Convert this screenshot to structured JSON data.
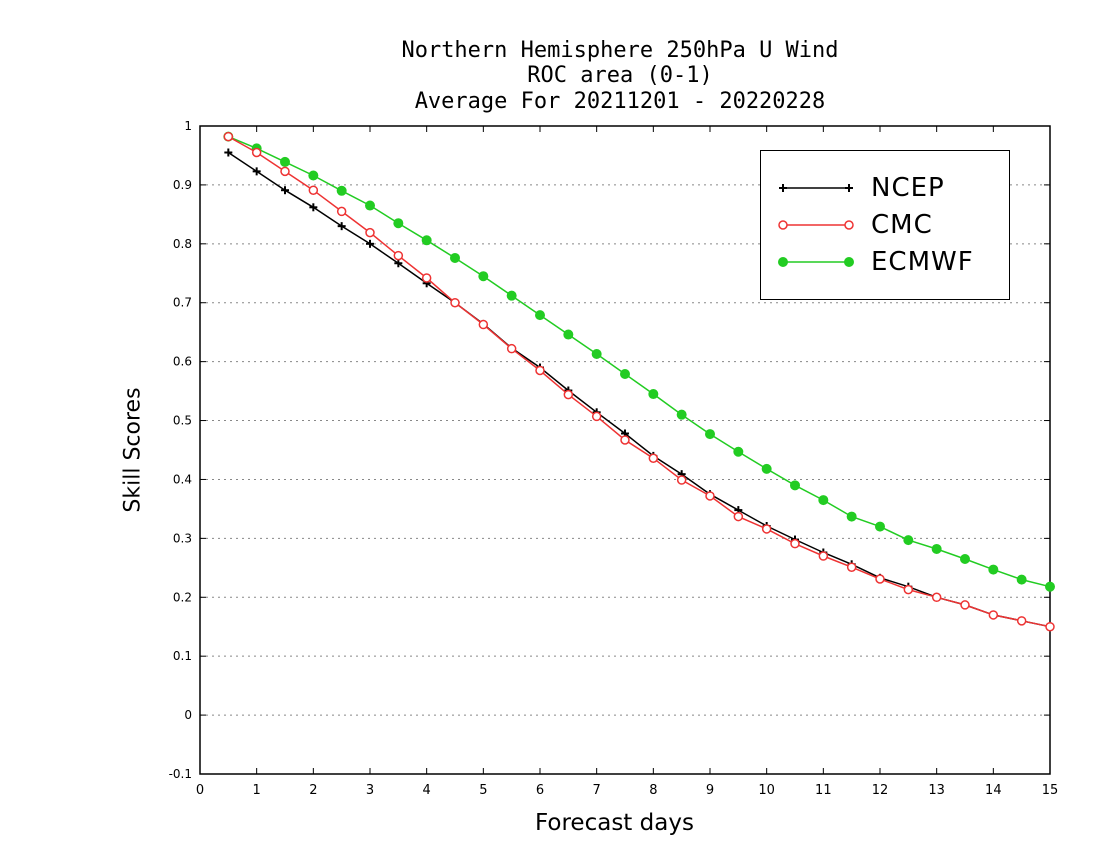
{
  "chart_data": {
    "type": "line",
    "title": [
      "Northern Hemisphere 250hPa U Wind",
      "ROC area (0-1)",
      "Average For 20211201 - 20220228"
    ],
    "xlabel": "Forecast days",
    "ylabel": "Skill Scores",
    "xlim": [
      0,
      15
    ],
    "ylim": [
      -0.1,
      1
    ],
    "xticks": [
      "0",
      "1",
      "2",
      "3",
      "4",
      "5",
      "6",
      "7",
      "8",
      "9",
      "10",
      "11",
      "12",
      "13",
      "14",
      "15"
    ],
    "yticks": [
      "-0.1",
      "0",
      "0.1",
      "0.2",
      "0.3",
      "0.4",
      "0.5",
      "0.6",
      "0.7",
      "0.8",
      "0.9",
      "1"
    ],
    "grid": "horizontal dotted",
    "legend_position": "top-right",
    "x": [
      0.5,
      1,
      1.5,
      2,
      2.5,
      3,
      3.5,
      4,
      4.5,
      5,
      5.5,
      6,
      6.5,
      7,
      7.5,
      8,
      8.5,
      9,
      9.5,
      10,
      10.5,
      11,
      11.5,
      12,
      12.5,
      13,
      13.5,
      14,
      14.5,
      15
    ],
    "series": [
      {
        "name": "NCEP",
        "color": "#000000",
        "marker": "plus",
        "values": [
          0.955,
          0.923,
          0.891,
          0.862,
          0.83,
          0.8,
          0.767,
          0.733,
          0.7,
          0.664,
          0.623,
          0.59,
          0.551,
          0.514,
          0.478,
          0.44,
          0.409,
          0.375,
          0.348,
          0.321,
          0.298,
          0.276,
          0.256,
          0.233,
          0.218,
          0.2,
          0.187,
          0.17,
          0.16,
          0.15
        ]
      },
      {
        "name": "CMC",
        "color": "#ee3333",
        "marker": "open-circle",
        "values": [
          0.982,
          0.955,
          0.923,
          0.891,
          0.855,
          0.819,
          0.78,
          0.742,
          0.7,
          0.663,
          0.622,
          0.585,
          0.544,
          0.507,
          0.467,
          0.436,
          0.399,
          0.372,
          0.337,
          0.316,
          0.291,
          0.27,
          0.251,
          0.231,
          0.213,
          0.2,
          0.187,
          0.17,
          0.16,
          0.15
        ]
      },
      {
        "name": "ECMWF",
        "color": "#22cc22",
        "marker": "filled-circle",
        "values": [
          0.982,
          0.962,
          0.939,
          0.916,
          0.89,
          0.865,
          0.835,
          0.806,
          0.776,
          0.745,
          0.712,
          0.679,
          0.646,
          0.613,
          0.579,
          0.545,
          0.51,
          0.477,
          0.447,
          0.418,
          0.39,
          0.365,
          0.337,
          0.32,
          0.297,
          0.282,
          0.265,
          0.247,
          0.23,
          0.218
        ]
      }
    ]
  }
}
